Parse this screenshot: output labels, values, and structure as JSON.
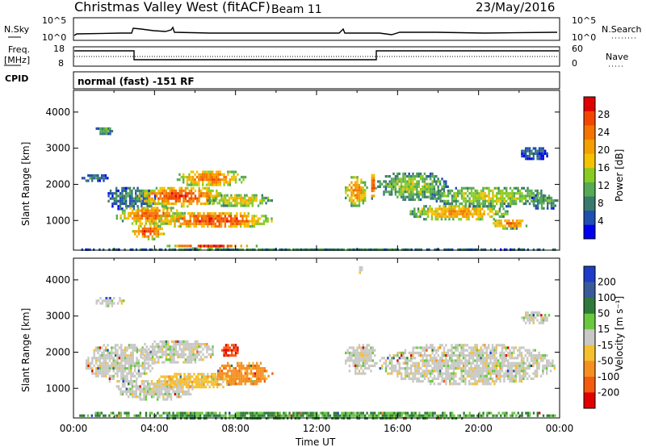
{
  "header": {
    "title": "Christmas Valley West (fitACF)",
    "beam": "Beam 11",
    "date": "23/May/2016"
  },
  "panels": {
    "nsky": {
      "label": "N.Sky",
      "right_label": "N.Search",
      "ticks_left": [
        "10^5",
        "10^0"
      ],
      "ticks_right": [
        "10^5",
        "10^0"
      ]
    },
    "freq": {
      "label": "Freq.",
      "units": "[MHz]",
      "ticks_left": [
        "18",
        "8"
      ],
      "ticks_right": [
        "60",
        "0"
      ],
      "right_label": "Nave"
    },
    "cpid": {
      "label": "CPID",
      "text": "normal (fast) -151 RF"
    }
  },
  "chart_data": [
    {
      "type": "heatmap",
      "title": "",
      "xlabel": "",
      "ylabel": "Slant Range [km]",
      "yticks": [
        "1000",
        "2000",
        "3000",
        "4000"
      ],
      "ylim": [
        180,
        4600
      ],
      "xlim": [
        0,
        24
      ],
      "colorbar": {
        "label": "Power [dB]",
        "ticks": [
          "4",
          "8",
          "12",
          "16",
          "20",
          "24",
          "28"
        ],
        "colors": [
          "#0000ee",
          "#1f4fb0",
          "#3a7a6c",
          "#55aa55",
          "#88cc22",
          "#f5c200",
          "#f4a000",
          "#f47400",
          "#f24600",
          "#e00000"
        ]
      },
      "regions": [
        {
          "t0": 0.3,
          "t1": 1.7,
          "r0": 2100,
          "r1": 2350,
          "level": 0.2
        },
        {
          "t0": 1.0,
          "t1": 2.0,
          "r0": 3400,
          "r1": 3650,
          "level": 0.35
        },
        {
          "t0": 1.5,
          "t1": 4.2,
          "r0": 1300,
          "r1": 2000,
          "level": 0.25
        },
        {
          "t0": 2.0,
          "t1": 5.5,
          "r0": 900,
          "r1": 1450,
          "level": 0.85
        },
        {
          "t0": 2.8,
          "t1": 4.5,
          "r0": 500,
          "r1": 950,
          "level": 0.9
        },
        {
          "t0": 3.0,
          "t1": 7.5,
          "r0": 1400,
          "r1": 2000,
          "level": 0.9
        },
        {
          "t0": 5.0,
          "t1": 8.5,
          "r0": 1950,
          "r1": 2450,
          "level": 0.8
        },
        {
          "t0": 4.0,
          "t1": 9.8,
          "r0": 800,
          "r1": 1300,
          "level": 0.92
        },
        {
          "t0": 6.5,
          "t1": 9.8,
          "r0": 1400,
          "r1": 1800,
          "level": 0.6
        },
        {
          "t0": 4.5,
          "t1": 9.0,
          "r0": 250,
          "r1": 400,
          "level": 0.95
        },
        {
          "t0": 13.3,
          "t1": 14.5,
          "r0": 1400,
          "r1": 2300,
          "level": 0.75
        },
        {
          "t0": 14.6,
          "t1": 14.9,
          "r0": 1600,
          "r1": 2500,
          "level": 0.85
        },
        {
          "t0": 14.9,
          "t1": 18.5,
          "r0": 1600,
          "r1": 2400,
          "level": 0.45
        },
        {
          "t0": 16.5,
          "t1": 21.5,
          "r0": 1000,
          "r1": 1500,
          "level": 0.7
        },
        {
          "t0": 17.5,
          "t1": 23.5,
          "r0": 1400,
          "r1": 2000,
          "level": 0.5
        },
        {
          "t0": 20.5,
          "t1": 22.5,
          "r0": 800,
          "r1": 1100,
          "level": 0.8
        },
        {
          "t0": 22.5,
          "t1": 23.9,
          "r0": 1300,
          "r1": 1800,
          "level": 0.35
        },
        {
          "t0": 22.0,
          "t1": 23.5,
          "r0": 2700,
          "r1": 3100,
          "level": 0.15
        },
        {
          "t0": 0.0,
          "t1": 24.0,
          "r0": 180,
          "r1": 300,
          "level": 0.25
        }
      ]
    },
    {
      "type": "heatmap",
      "title": "",
      "xlabel": "Time UT",
      "ylabel": "Slant Range [km]",
      "xticks": [
        "00:00",
        "04:00",
        "08:00",
        "12:00",
        "16:00",
        "20:00",
        "00:00"
      ],
      "yticks": [
        "1000",
        "2000",
        "3000",
        "4000"
      ],
      "ylim": [
        180,
        4600
      ],
      "xlim": [
        0,
        24
      ],
      "colorbar": {
        "label": "Velocity [m s⁻¹]",
        "ticks": [
          "200",
          "100",
          "50",
          "15",
          "-15",
          "-50",
          "-100",
          "-200"
        ],
        "colors": [
          "#1f3cc8",
          "#3a5a9a",
          "#2f7a3a",
          "#6ac840",
          "#c8c8c4",
          "#f5c030",
          "#f49020",
          "#f45a10",
          "#e00000"
        ]
      },
      "regions": [
        {
          "t0": 1.0,
          "t1": 2.5,
          "r0": 3300,
          "r1": 3600,
          "level": 0.5
        },
        {
          "t0": 0.5,
          "t1": 4.0,
          "r0": 1200,
          "r1": 2300,
          "level": 0.5
        },
        {
          "t0": 2.0,
          "t1": 6.0,
          "r0": 700,
          "r1": 1300,
          "level": 0.5
        },
        {
          "t0": 3.0,
          "t1": 7.0,
          "r0": 1700,
          "r1": 2400,
          "level": 0.5
        },
        {
          "t0": 4.0,
          "t1": 8.0,
          "r0": 1000,
          "r1": 1500,
          "level": 0.62
        },
        {
          "t0": 7.0,
          "t1": 9.8,
          "r0": 1100,
          "r1": 1800,
          "level": 0.75
        },
        {
          "t0": 7.2,
          "t1": 8.2,
          "r0": 1900,
          "r1": 2300,
          "level": 0.9
        },
        {
          "t0": 0.0,
          "t1": 24.0,
          "r0": 180,
          "r1": 420,
          "level": 0.3
        },
        {
          "t0": 13.3,
          "t1": 15.0,
          "r0": 1400,
          "r1": 2300,
          "level": 0.5
        },
        {
          "t0": 15.0,
          "t1": 23.8,
          "r0": 1100,
          "r1": 2300,
          "level": 0.5
        },
        {
          "t0": 22.0,
          "t1": 23.5,
          "r0": 2800,
          "r1": 3200,
          "level": 0.5
        },
        {
          "t0": 14.0,
          "t1": 14.3,
          "r0": 4200,
          "r1": 4450,
          "level": 0.5
        }
      ]
    }
  ],
  "colors": {
    "background": "#ffffff",
    "axis": "#000000"
  }
}
